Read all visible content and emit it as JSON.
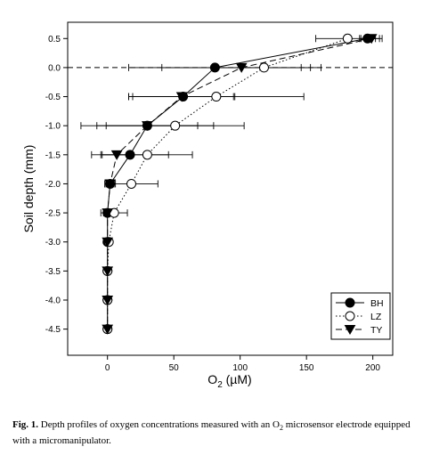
{
  "chart_data": {
    "type": "line",
    "xlabel_main": "O",
    "xlabel_sub": "2",
    "xlabel_unit": "(µM)",
    "ylabel": "Soil depth (mm)",
    "xlim": [
      -30,
      215
    ],
    "ylim": [
      -4.95,
      0.78
    ],
    "xticks": [
      0,
      50,
      100,
      150,
      200
    ],
    "yticks": [
      0.5,
      0.0,
      -0.5,
      -1.0,
      -1.5,
      -2.0,
      -2.5,
      -3.0,
      -3.5,
      -4.0,
      -4.5
    ],
    "ytick_labels": [
      "0.5",
      "0.0",
      "-0.5",
      "-1.0",
      "-1.5",
      "-2.0",
      "-2.5",
      "-3.0",
      "-3.5",
      "-4.0",
      "-4.5"
    ],
    "reference_line_y": 0.0,
    "legend_position": "bottom-right",
    "series": [
      {
        "name": "BH",
        "marker": "filled-circle",
        "line": "solid",
        "points": [
          {
            "x": 196,
            "y": 0.5,
            "err": 6
          },
          {
            "x": 81,
            "y": 0.0,
            "err": 65
          },
          {
            "x": 57,
            "y": -0.5,
            "err": 38
          },
          {
            "x": 30,
            "y": -1.0,
            "err": 50
          },
          {
            "x": 17,
            "y": -1.5,
            "err": 29
          },
          {
            "x": 2,
            "y": -2.0,
            "err": 3
          },
          {
            "x": 0,
            "y": -2.5,
            "err": 3
          },
          {
            "x": 0,
            "y": -3.0,
            "err": 0
          },
          {
            "x": 0,
            "y": -3.5,
            "err": 0
          },
          {
            "x": 0,
            "y": -4.0,
            "err": 0
          },
          {
            "x": 0,
            "y": -4.5,
            "err": 0
          }
        ]
      },
      {
        "name": "LZ",
        "marker": "open-circle",
        "line": "dotted",
        "points": [
          {
            "x": 181,
            "y": 0.5,
            "err": 24
          },
          {
            "x": 118,
            "y": 0.0,
            "err": 35
          },
          {
            "x": 82,
            "y": -0.5,
            "err": 66
          },
          {
            "x": 51,
            "y": -1.0,
            "err": 52
          },
          {
            "x": 30,
            "y": -1.5,
            "err": 34
          },
          {
            "x": 18,
            "y": -2.0,
            "err": 20
          },
          {
            "x": 5,
            "y": -2.5,
            "err": 10
          },
          {
            "x": 1,
            "y": -3.0,
            "err": 0
          },
          {
            "x": 0,
            "y": -3.5,
            "err": 0
          },
          {
            "x": 0,
            "y": -4.0,
            "err": 0
          },
          {
            "x": 0,
            "y": -4.5,
            "err": 0
          }
        ]
      },
      {
        "name": "TY",
        "marker": "filled-triangle-down",
        "line": "dashed",
        "points": [
          {
            "x": 199,
            "y": 0.5,
            "err": 8
          },
          {
            "x": 101,
            "y": 0.0,
            "err": 60
          },
          {
            "x": 56,
            "y": -0.5,
            "err": 40
          },
          {
            "x": 30,
            "y": -1.0,
            "err": 38
          },
          {
            "x": 7,
            "y": -1.5,
            "err": 12
          },
          {
            "x": 2,
            "y": -2.0,
            "err": 4
          },
          {
            "x": 0,
            "y": -2.5,
            "err": 2
          },
          {
            "x": 0,
            "y": -3.0,
            "err": 0
          },
          {
            "x": 0,
            "y": -3.5,
            "err": 0
          },
          {
            "x": 0,
            "y": -4.0,
            "err": 0
          },
          {
            "x": 0,
            "y": -4.5,
            "err": 0
          }
        ]
      }
    ]
  },
  "caption": {
    "label": "Fig. 1.",
    "text_before_sub": " Depth profiles of oxygen concentrations measured with an O",
    "sub": "2",
    "text_after_sub": " microsensor electrode equipped with a micromanipulator."
  }
}
